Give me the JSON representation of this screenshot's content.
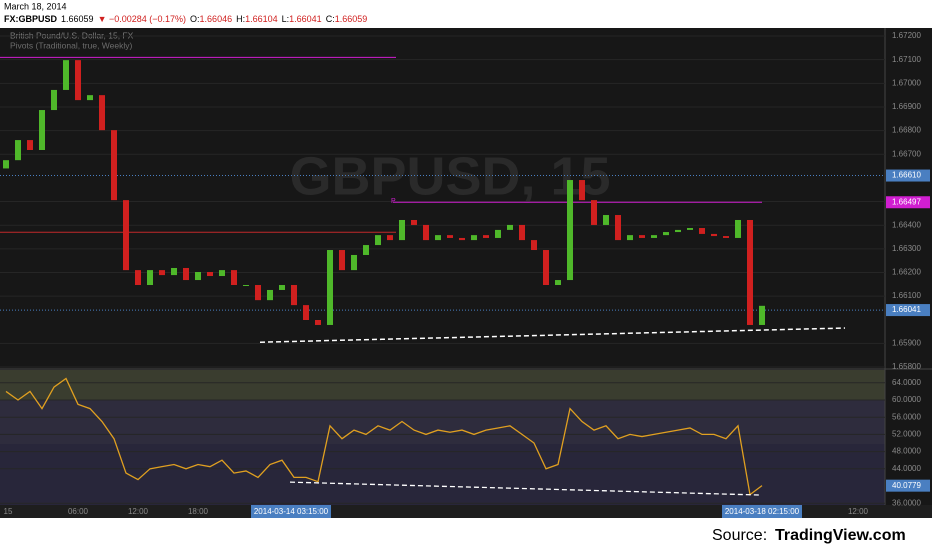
{
  "header": {
    "date": "March 18, 2014",
    "symbol": "FX:GBPUSD",
    "last": "1.66059",
    "change": "▼ −0.00284 (−0.17%)",
    "ohlc": [
      {
        "label": "O:",
        "value": "1.66046"
      },
      {
        "label": "H:",
        "value": "1.66104"
      },
      {
        "label": "L:",
        "value": "1.66041"
      },
      {
        "label": "C:",
        "value": "1.66059"
      }
    ]
  },
  "legend": {
    "instrument": "British Pound/U.S. Dollar, 15, FX",
    "indicator": "Pivots (Traditional, true, Weekly)",
    "watermark": "GBPUSD, 15"
  },
  "chart_data": [
    {
      "type": "candlestick",
      "up_color": "#4fb82a",
      "down_color": "#d0201f",
      "open": [
        1.6664,
        1.66675,
        1.6676,
        1.66718,
        1.66887,
        1.66972,
        1.67098,
        1.66929,
        1.6695,
        1.66802,
        1.66506,
        1.6621,
        1.66147,
        1.6621,
        1.66189,
        1.66219,
        1.66168,
        1.66202,
        1.66185,
        1.6621,
        1.66147,
        1.66147,
        1.66083,
        1.66126,
        1.66147,
        1.66062,
        1.65999,
        1.65978,
        1.66295,
        1.6621,
        1.66274,
        1.66316,
        1.66358,
        1.66337,
        1.66422,
        1.66401,
        1.66337,
        1.66358,
        1.66346,
        1.66337,
        1.66358,
        1.66346,
        1.6638,
        1.66401,
        1.66337,
        1.66295,
        1.66147,
        1.66168,
        1.66591,
        1.66506,
        1.66401,
        1.66443,
        1.66337,
        1.66358,
        1.66346,
        1.66358,
        1.66371,
        1.6638,
        1.66388,
        1.66363,
        1.66354,
        1.66346,
        1.66422,
        1.65978
      ],
      "close": [
        1.66675,
        1.6676,
        1.66718,
        1.66887,
        1.66972,
        1.67098,
        1.66929,
        1.6695,
        1.66802,
        1.66506,
        1.6621,
        1.66147,
        1.6621,
        1.66189,
        1.66219,
        1.66168,
        1.66202,
        1.66185,
        1.6621,
        1.66147,
        1.66147,
        1.66083,
        1.66126,
        1.66147,
        1.66062,
        1.65999,
        1.65978,
        1.66295,
        1.6621,
        1.66274,
        1.66316,
        1.66358,
        1.66337,
        1.66422,
        1.66401,
        1.66337,
        1.66358,
        1.66346,
        1.66337,
        1.66358,
        1.66346,
        1.6638,
        1.66401,
        1.66337,
        1.66295,
        1.66147,
        1.66168,
        1.66591,
        1.66506,
        1.66401,
        1.66443,
        1.66337,
        1.66358,
        1.66346,
        1.66358,
        1.66371,
        1.6638,
        1.66388,
        1.66363,
        1.66354,
        1.66346,
        1.66422,
        1.65978,
        1.66059
      ],
      "ylim": [
        1.65796,
        1.67234
      ],
      "yticks": [
        {
          "value": 1.672,
          "label": "1.67200"
        },
        {
          "value": 1.671,
          "label": "1.67100"
        },
        {
          "value": 1.67,
          "label": "1.67000"
        },
        {
          "value": 1.669,
          "label": "1.66900"
        },
        {
          "value": 1.668,
          "label": "1.66800"
        },
        {
          "value": 1.667,
          "label": "1.66700"
        },
        {
          "value": 1.665,
          "label": "1.66500"
        },
        {
          "value": 1.664,
          "label": "1.66400"
        },
        {
          "value": 1.663,
          "label": "1.66300"
        },
        {
          "value": 1.662,
          "label": "1.66200"
        },
        {
          "value": 1.661,
          "label": "1.66100"
        },
        {
          "value": 1.659,
          "label": "1.65900"
        },
        {
          "value": 1.658,
          "label": "1.65800"
        }
      ],
      "levels": [
        {
          "value": 1.6661,
          "label": "1.66610",
          "color": "#4a7fc1"
        },
        {
          "value": 1.66497,
          "label": "1.66497",
          "color": "#d11ed1",
          "name": "P"
        },
        {
          "value": 1.66041,
          "label": "1.66041",
          "color": "#4a7fc1"
        }
      ],
      "lines": [
        {
          "value": 1.6711,
          "color": "#d11ed1"
        },
        {
          "value": 1.6637,
          "color": "#c0282a"
        }
      ],
      "trendline": [
        1.65905,
        1.65965
      ]
    },
    {
      "type": "line",
      "color": "#e0a020",
      "values": [
        62,
        60,
        62,
        58,
        63,
        65,
        59,
        58,
        55,
        51,
        43,
        41.5,
        44,
        44.5,
        45,
        44,
        45,
        44.5,
        46,
        43,
        43.5,
        42,
        45,
        46,
        42,
        42,
        41,
        54,
        51,
        53,
        52,
        54,
        53,
        55,
        53,
        52,
        53,
        52.5,
        53,
        52,
        53,
        53.5,
        54,
        52,
        50,
        44,
        45,
        58,
        55,
        53,
        54,
        51,
        52,
        51.5,
        52,
        52.5,
        53,
        53.5,
        52,
        52,
        51,
        54,
        38,
        40.0779
      ],
      "ylim": [
        35.58,
        66.98
      ],
      "yticks": [
        {
          "value": 64,
          "label": "64.0000"
        },
        {
          "value": 60,
          "label": "60.0000"
        },
        {
          "value": 56,
          "label": "56.0000"
        },
        {
          "value": 52,
          "label": "52.0000"
        },
        {
          "value": 48,
          "label": "48.0000"
        },
        {
          "value": 44,
          "label": "44.0000"
        },
        {
          "value": 36,
          "label": "36.0000"
        }
      ],
      "trendline": [
        40.9,
        37.9
      ]
    }
  ],
  "time_axis": {
    "labels": [
      "15",
      "06:00",
      "12:00",
      "18:00",
      "2014-03-14 03:15:00",
      "2014-03-18 02:15:00",
      "12:00"
    ]
  },
  "source": {
    "prefix": "Source:",
    "site": "TradingView.com"
  }
}
